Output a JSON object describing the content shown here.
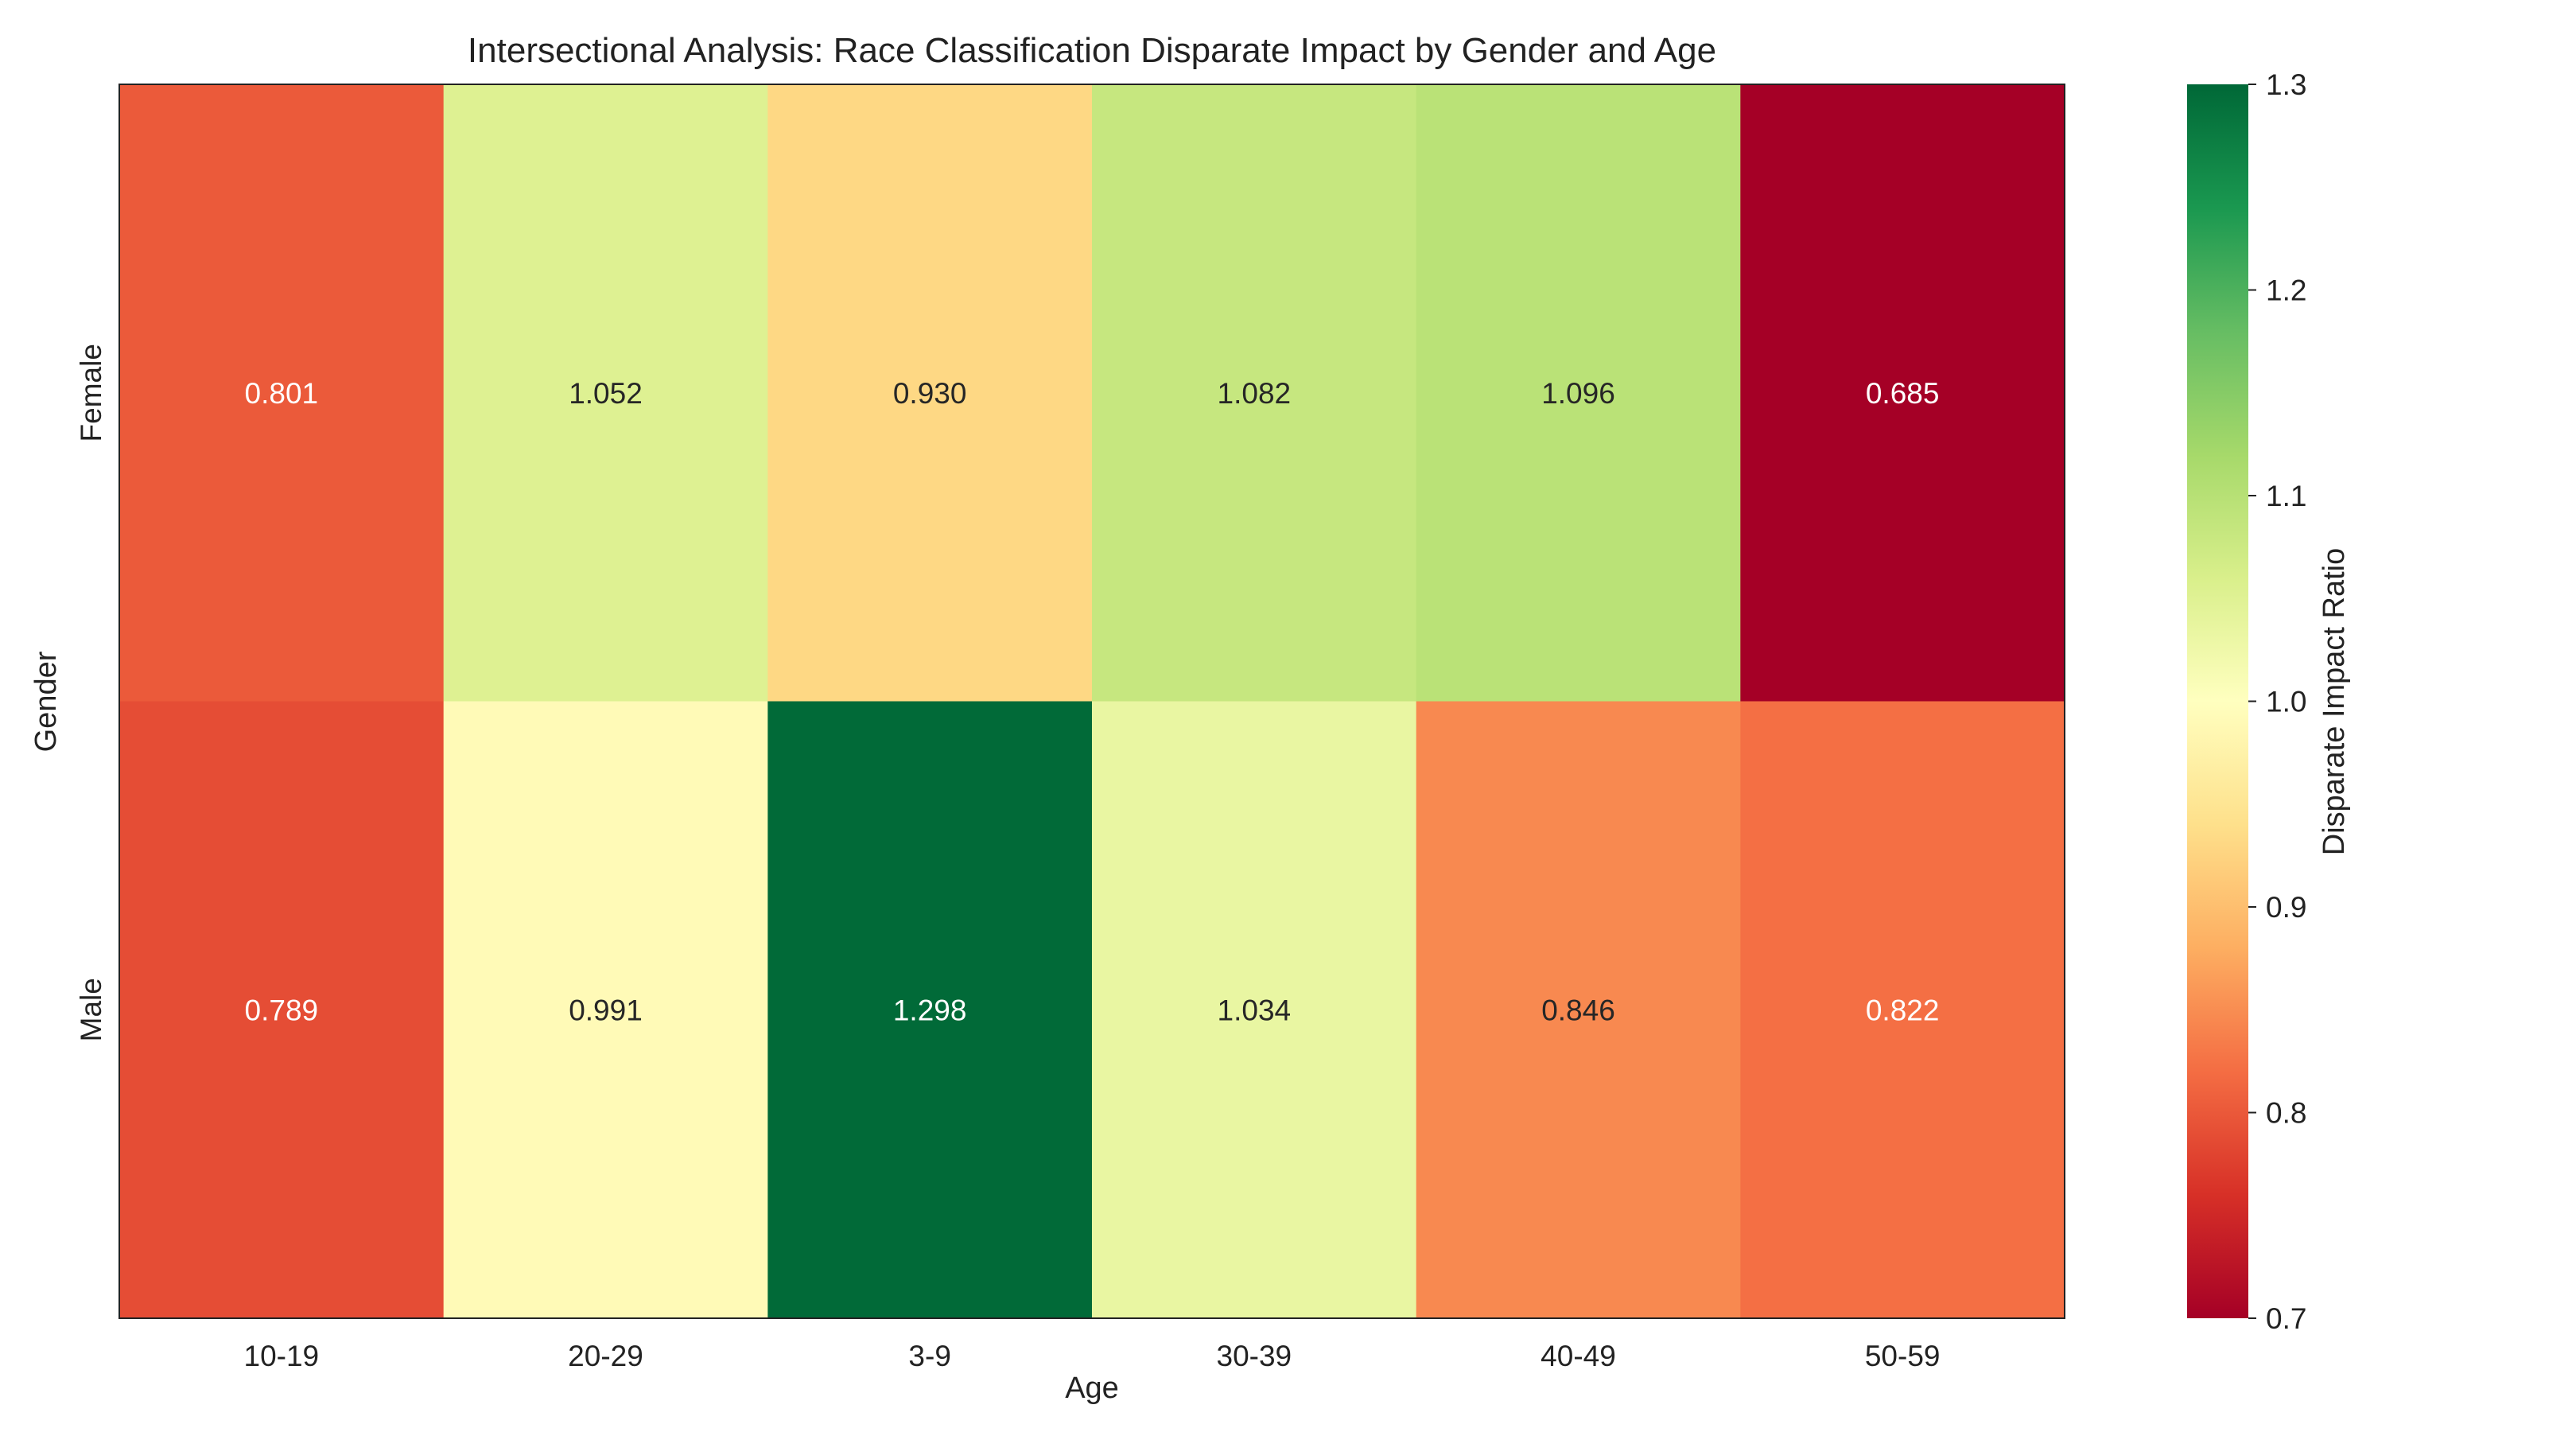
{
  "chart_data": {
    "type": "heatmap",
    "title": "Intersectional Analysis: Race Classification Disparate Impact by Gender and Age",
    "xlabel": "Age",
    "ylabel": "Gender",
    "x_categories": [
      "10-19",
      "20-29",
      "3-9",
      "30-39",
      "40-49",
      "50-59"
    ],
    "y_categories": [
      "Female",
      "Male"
    ],
    "values": [
      [
        0.801,
        1.052,
        0.93,
        1.082,
        1.096,
        0.685
      ],
      [
        0.789,
        0.991,
        1.298,
        1.034,
        0.846,
        0.822
      ]
    ],
    "value_labels": [
      [
        "0.801",
        "1.052",
        "0.930",
        "1.082",
        "1.096",
        "0.685"
      ],
      [
        "0.789",
        "0.991",
        "1.298",
        "1.034",
        "0.846",
        "0.822"
      ]
    ],
    "colormap": "RdYlGn",
    "vmin": 0.7,
    "vmax": 1.3,
    "colorbar_label": "Disparate Impact Ratio",
    "colorbar_ticks": [
      "0.7",
      "0.8",
      "0.9",
      "1.0",
      "1.1",
      "1.2",
      "1.3"
    ]
  }
}
